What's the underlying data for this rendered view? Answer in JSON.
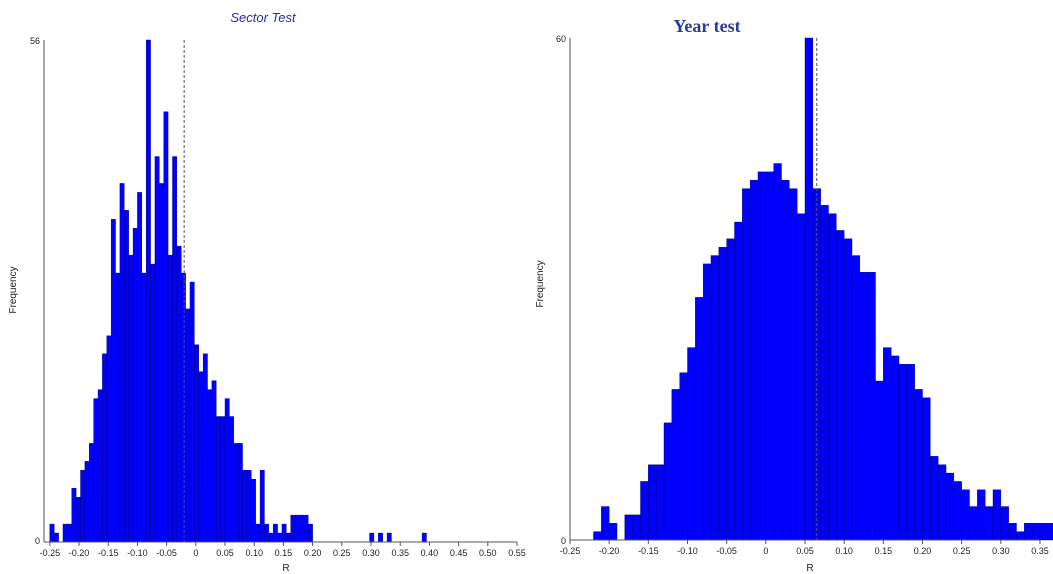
{
  "colors": {
    "bar": "#0000ff",
    "bar_stroke": "#000060",
    "axis": "#555555",
    "ref_line": "#555555"
  },
  "chart_data": [
    {
      "type": "bar",
      "title": "Sector Test",
      "xlabel": "R",
      "ylabel": "Frequency",
      "xlim": [
        -0.26,
        0.55
      ],
      "ylim": [
        0,
        56
      ],
      "y_ticks": [
        "0",
        "56"
      ],
      "x_ticks": [
        "-0.25",
        "-0.20",
        "-0.15",
        "-0.10",
        "-0.05",
        "0",
        "0.05",
        "0.10",
        "0.15",
        "0.20",
        "0.25",
        "0.30",
        "0.35",
        "0.40",
        "0.45",
        "0.50",
        "0.55"
      ],
      "x_tick_values": [
        -0.25,
        -0.2,
        -0.15,
        -0.1,
        -0.05,
        0,
        0.05,
        0.1,
        0.15,
        0.2,
        0.25,
        0.3,
        0.35,
        0.4,
        0.45,
        0.5,
        0.55
      ],
      "reference_line_x": -0.02,
      "bin_start": -0.25,
      "bin_width": 0.0075,
      "values": [
        2,
        1,
        0,
        2,
        2,
        6,
        5,
        8,
        9,
        11,
        16,
        17,
        21,
        23,
        36,
        30,
        40,
        37,
        32,
        35,
        39,
        30,
        56,
        31,
        43,
        40,
        48,
        32,
        43,
        33,
        30,
        26,
        29,
        22,
        19,
        21,
        17,
        18,
        14,
        14,
        16,
        14,
        11,
        11,
        8,
        8,
        7,
        2,
        8,
        2,
        1,
        2,
        1,
        2,
        1,
        3,
        3,
        3,
        3,
        2,
        0,
        0,
        0,
        0,
        0,
        0,
        0,
        0,
        0,
        0,
        0,
        0,
        0,
        1,
        0,
        1,
        0,
        1,
        0,
        0,
        0,
        0,
        0,
        0,
        0,
        1
      ]
    },
    {
      "type": "bar",
      "title": "Year test",
      "xlabel": "R",
      "ylabel": "Frequency",
      "xlim": [
        -0.25,
        0.35
      ],
      "ylim": [
        0,
        60
      ],
      "y_ticks": [
        "0",
        "60"
      ],
      "x_ticks": [
        "-0.25",
        "-0.20",
        "-0.15",
        "-0.10",
        "-0.05",
        "0",
        "0.05",
        "0.10",
        "0.15",
        "0.20",
        "0.25",
        "0.30",
        "0.35"
      ],
      "x_tick_values": [
        -0.25,
        -0.2,
        -0.15,
        -0.1,
        -0.05,
        0,
        0.05,
        0.1,
        0.15,
        0.2,
        0.25,
        0.3,
        0.35
      ],
      "reference_line_x": 0.065,
      "bin_start": -0.22,
      "bin_width": 0.01,
      "values": [
        1,
        4,
        2,
        0,
        3,
        3,
        7,
        9,
        9,
        14,
        18,
        20,
        23,
        29,
        33,
        34,
        35,
        36,
        38,
        42,
        43,
        44,
        44,
        45,
        43,
        42,
        39,
        60,
        42,
        40,
        39,
        37,
        36,
        34,
        32,
        32,
        19,
        23,
        22,
        21,
        21,
        18,
        17,
        10,
        9,
        8,
        7,
        6,
        4,
        6,
        4,
        6,
        4,
        2,
        1,
        2,
        2,
        2,
        2,
        3
      ]
    }
  ]
}
